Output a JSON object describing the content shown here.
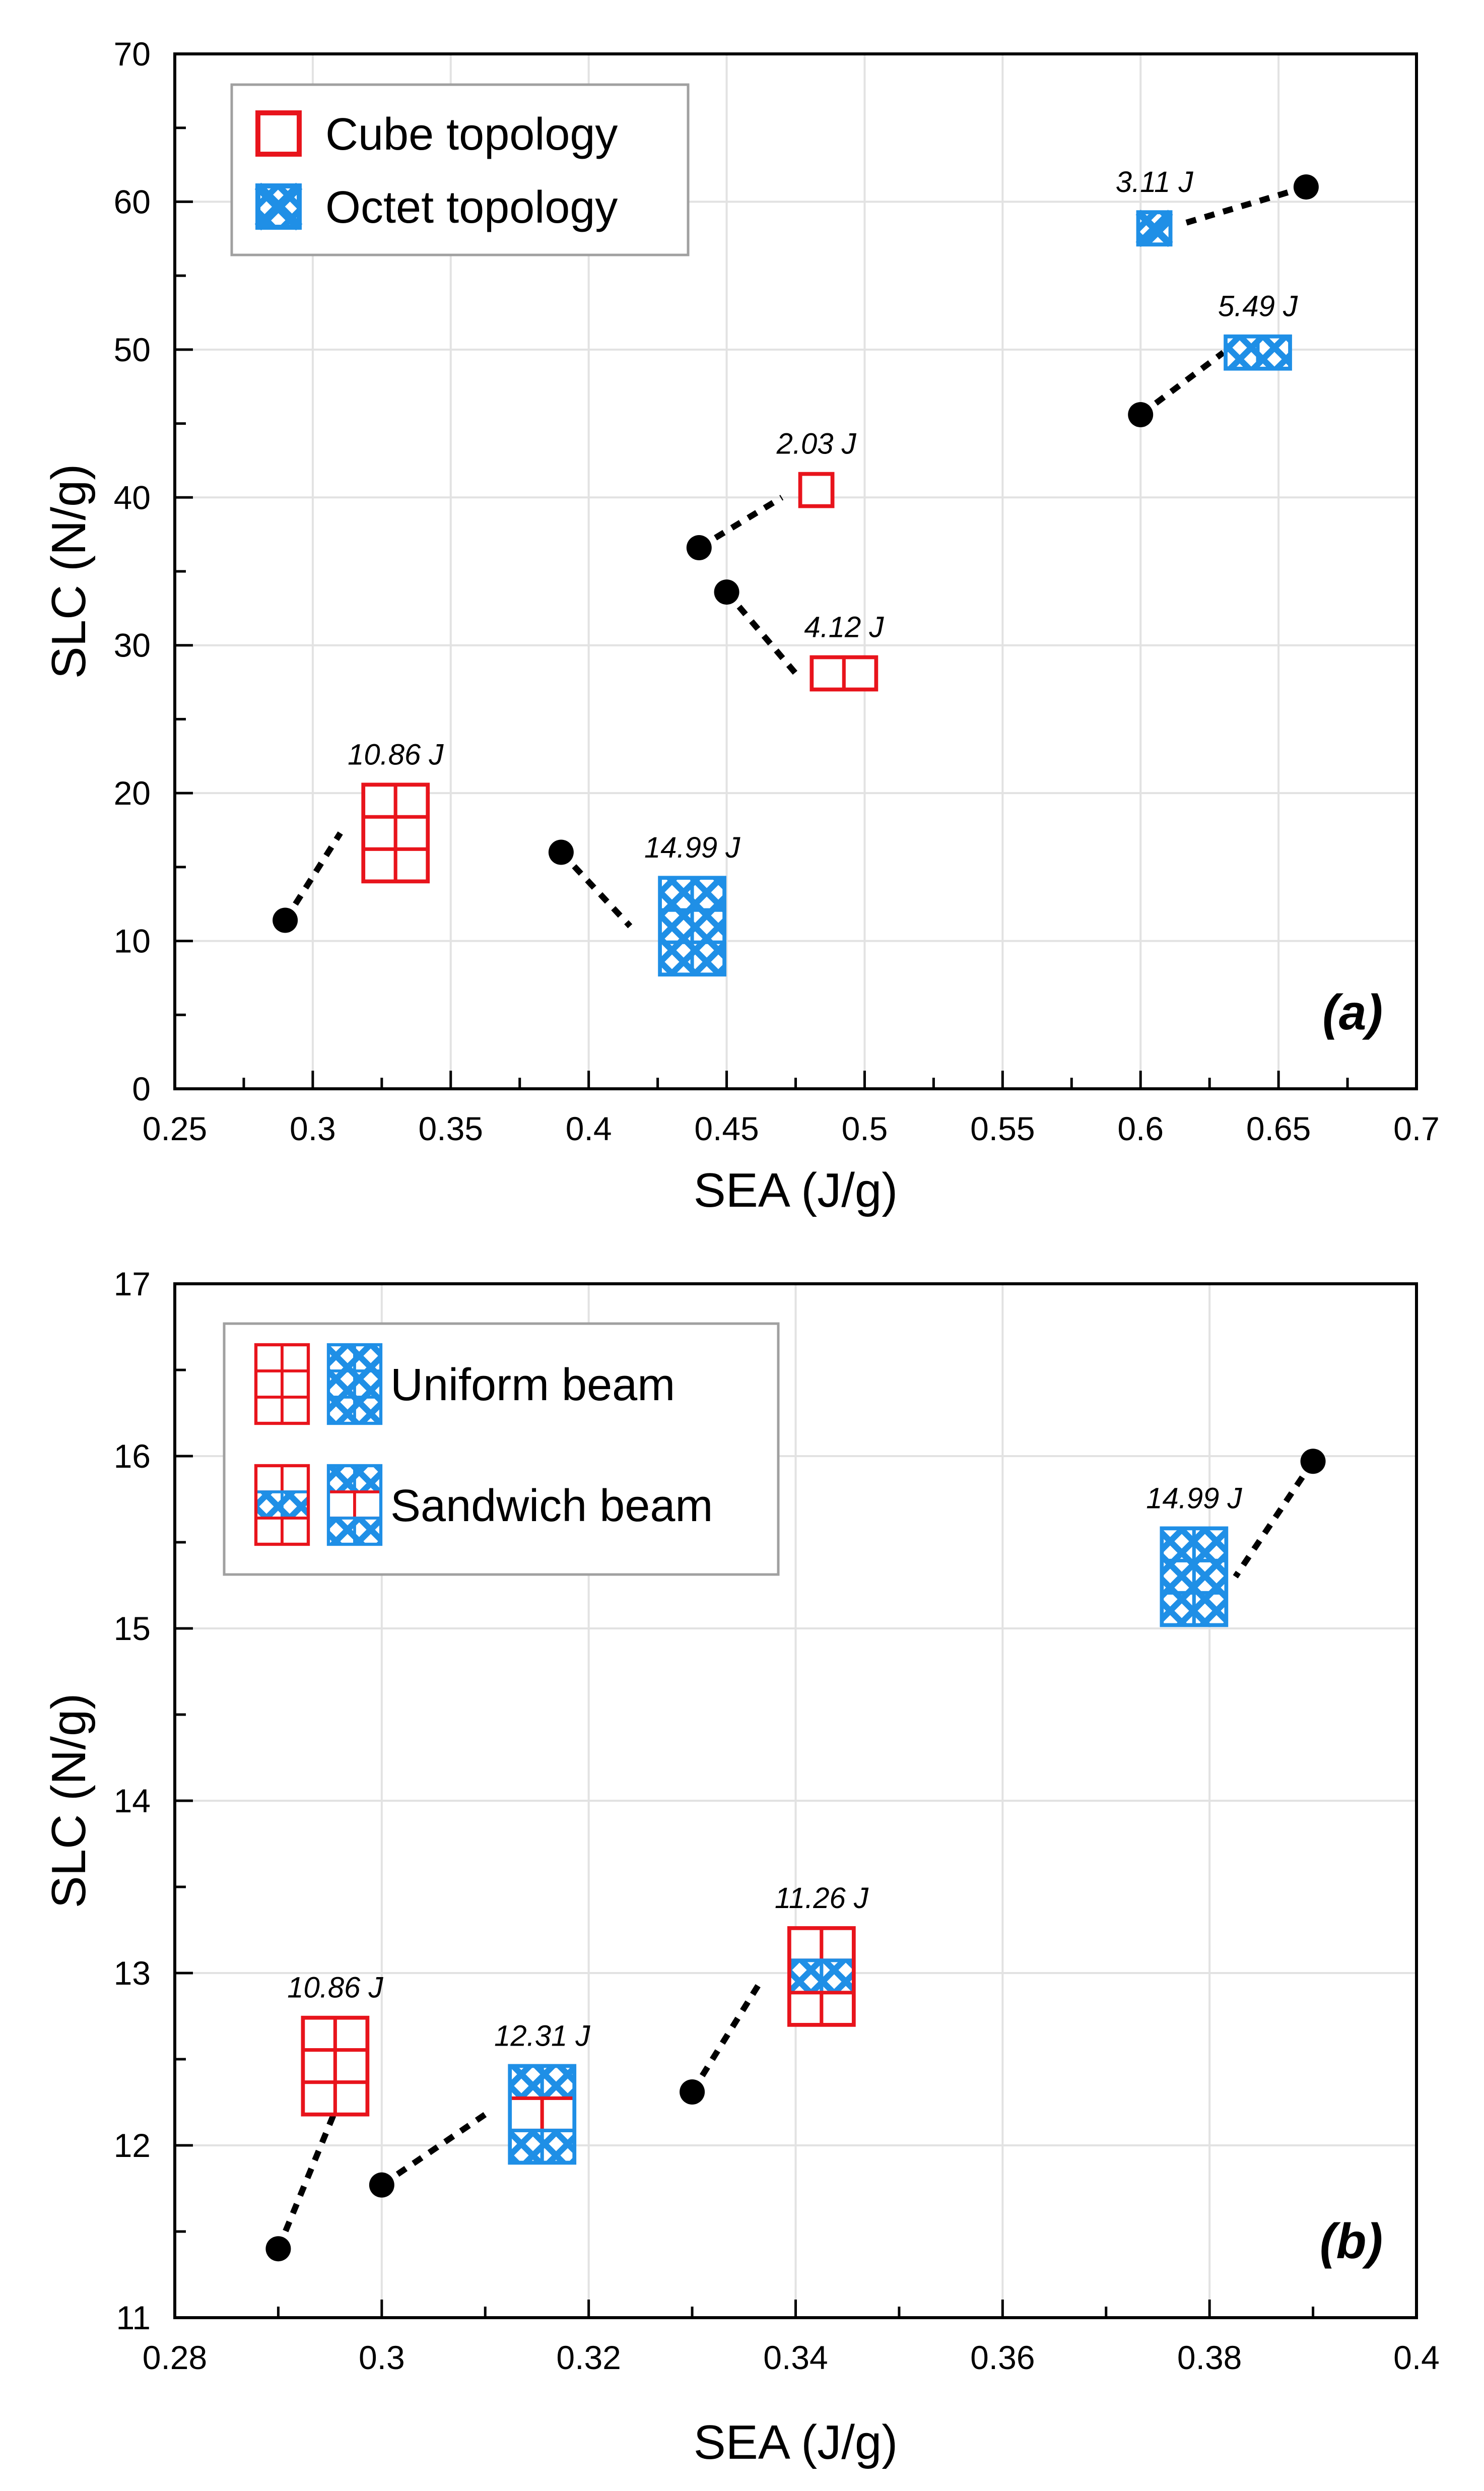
{
  "colors": {
    "cube": "#e8141c",
    "octet": "#1f8fe6",
    "point": "#000000",
    "grid": "#e2e2e2"
  },
  "chart_data": [
    {
      "type": "scatter",
      "panel": "(a)",
      "xlabel": "SEA (J/g)",
      "ylabel": "SLC (N/g)",
      "xlim": [
        0.25,
        0.7
      ],
      "ylim": [
        0,
        70
      ],
      "xticks": [
        "0.25",
        "0.3",
        "0.35",
        "0.4",
        "0.45",
        "0.5",
        "0.55",
        "0.6",
        "0.65",
        "0.7"
      ],
      "yticks": [
        "0",
        "10",
        "20",
        "30",
        "40",
        "50",
        "60",
        "70"
      ],
      "grid": true,
      "legend": {
        "placement": "top-left",
        "entries": [
          {
            "label": "Cube topology",
            "icon": "cube-square-icon"
          },
          {
            "label": "Octet topology",
            "icon": "octet-square-icon"
          }
        ]
      },
      "points": [
        {
          "x": 0.29,
          "y": 11.4
        },
        {
          "x": 0.39,
          "y": 16.0
        },
        {
          "x": 0.44,
          "y": 36.6
        },
        {
          "x": 0.45,
          "y": 33.6
        },
        {
          "x": 0.6,
          "y": 45.6
        },
        {
          "x": 0.66,
          "y": 61.0
        }
      ],
      "annotations": [
        {
          "text": "10.86 J",
          "energy": 10.86,
          "x": 0.29,
          "y": 11.4,
          "icon": "cube-uniform-icon",
          "icon_x": 0.33,
          "icon_y": 17.3,
          "link_end": [
            0.31,
            17.3
          ]
        },
        {
          "text": "14.99 J",
          "energy": 14.99,
          "x": 0.39,
          "y": 16.0,
          "icon": "octet-uniform-icon",
          "icon_x": 0.4375,
          "icon_y": 11.0,
          "link_end": [
            0.415,
            11.0
          ]
        },
        {
          "text": "2.03 J",
          "energy": 2.03,
          "x": 0.44,
          "y": 36.6,
          "icon": "cube-single-icon",
          "icon_x": 0.4825,
          "icon_y": 40.5,
          "link_end": [
            0.47,
            40.0
          ]
        },
        {
          "text": "4.12 J",
          "energy": 4.12,
          "x": 0.45,
          "y": 33.6,
          "icon": "cube-double-icon",
          "icon_x": 0.4925,
          "icon_y": 28.1,
          "link_end": [
            0.475,
            28.1
          ]
        },
        {
          "text": "5.49 J",
          "energy": 5.49,
          "x": 0.6,
          "y": 45.6,
          "icon": "octet-double-icon",
          "icon_x": 0.6425,
          "icon_y": 49.8,
          "link_end": [
            0.63,
            49.8
          ]
        },
        {
          "text": "3.11 J",
          "energy": 3.11,
          "x": 0.66,
          "y": 61.0,
          "icon": "octet-single-icon",
          "icon_x": 0.605,
          "icon_y": 58.2,
          "link_end": [
            0.615,
            58.5
          ]
        }
      ]
    },
    {
      "type": "scatter",
      "panel": "(b)",
      "xlabel": "SEA (J/g)",
      "ylabel": "SLC (N/g)",
      "xlim": [
        0.28,
        0.4
      ],
      "ylim": [
        11,
        17
      ],
      "xticks": [
        "0.28",
        "0.3",
        "0.32",
        "0.34",
        "0.36",
        "0.38",
        "0.4"
      ],
      "yticks": [
        "11",
        "12",
        "13",
        "14",
        "15",
        "16",
        "17"
      ],
      "grid": true,
      "legend": {
        "placement": "top-left",
        "entries": [
          {
            "label": "Uniform beam",
            "icons": [
              "cube-uniform-icon",
              "octet-uniform-icon"
            ]
          },
          {
            "label": "Sandwich beam",
            "icons": [
              "cube-sandwich-icon",
              "octet-sandwich-icon"
            ]
          }
        ]
      },
      "points": [
        {
          "x": 0.29,
          "y": 11.4
        },
        {
          "x": 0.3,
          "y": 11.77
        },
        {
          "x": 0.33,
          "y": 12.31
        },
        {
          "x": 0.39,
          "y": 15.97
        }
      ],
      "annotations": [
        {
          "text": "10.86 J",
          "energy": 10.86,
          "x": 0.29,
          "y": 11.4,
          "icon": "cube-uniform-icon",
          "icon_x": 0.2955,
          "icon_y": 12.46,
          "link_end": [
            0.2955,
            12.2
          ]
        },
        {
          "text": "12.31 J",
          "energy": 12.31,
          "x": 0.3,
          "y": 11.77,
          "icon": "octet-sandwich-icon",
          "icon_x": 0.3155,
          "icon_y": 12.18,
          "link_end": [
            0.3105,
            12.2
          ]
        },
        {
          "text": "11.26 J",
          "energy": 11.26,
          "x": 0.33,
          "y": 12.31,
          "icon": "cube-sandwich-icon",
          "icon_x": 0.3425,
          "icon_y": 12.98,
          "link_end": [
            0.3365,
            12.94
          ]
        },
        {
          "text": "14.99 J",
          "energy": 14.99,
          "x": 0.39,
          "y": 15.97,
          "icon": "octet-uniform-icon",
          "icon_x": 0.3785,
          "icon_y": 15.3,
          "link_end": [
            0.3825,
            15.3
          ]
        }
      ]
    }
  ]
}
